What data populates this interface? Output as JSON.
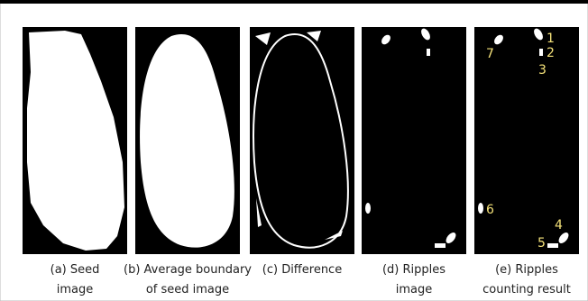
{
  "panels": [
    {
      "caption": [
        "(a)  Seed",
        "image"
      ]
    },
    {
      "caption": [
        "(b) Average boundary",
        "of seed image"
      ]
    },
    {
      "caption": [
        "(c)  Difference"
      ]
    },
    {
      "caption": [
        "(d) Ripples",
        "image"
      ]
    },
    {
      "caption": [
        "(e) Ripples",
        "counting result"
      ]
    }
  ],
  "ripple_labels": [
    "1",
    "2",
    "3",
    "4",
    "5",
    "6",
    "7"
  ]
}
